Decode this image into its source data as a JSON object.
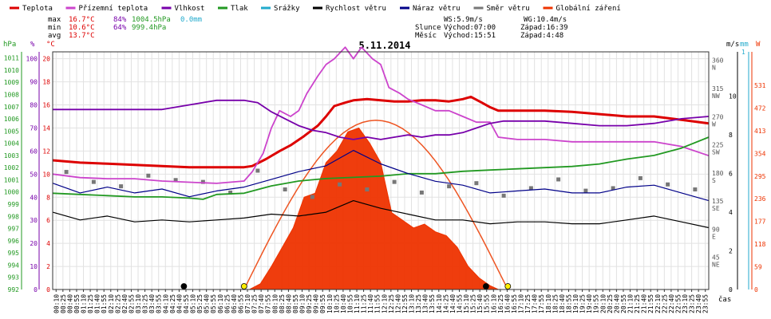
{
  "legend": [
    {
      "label": "Teplota",
      "color": "#dd0000"
    },
    {
      "label": "Přízemní teplota",
      "color": "#cc44cc"
    },
    {
      "label": "Vlhkost",
      "color": "#7700aa"
    },
    {
      "label": "Tlak",
      "color": "#229922"
    },
    {
      "label": "Srážky",
      "color": "#22aacc"
    },
    {
      "label": "Rychlost větru",
      "color": "#000000"
    },
    {
      "label": "Náraz větru",
      "color": "#000088"
    },
    {
      "label": "Směr větru",
      "color": "#777777"
    },
    {
      "label": "Globální záření",
      "color": "#ee3300"
    }
  ],
  "stats": {
    "max": {
      "label": "max",
      "temp": "16.7°C",
      "hum": "84%",
      "press": "1004.5hPa",
      "rain": "0.0mm"
    },
    "min": {
      "label": "min",
      "temp": "10.6°C",
      "hum": "64%",
      "press": "999.4hPa"
    },
    "avg": {
      "label": "avg",
      "temp": "13.7°C"
    }
  },
  "wind_info": {
    "ws": "WS:5.9m/s",
    "wg": "WG:10.4m/s"
  },
  "sun_info": {
    "label": "Slunce",
    "rise": "Východ:07:00",
    "set": "Západ:16:39"
  },
  "moon_info": {
    "label": "Měsíc",
    "rise": "Východ:15:51",
    "set": "Západ:4:48"
  },
  "axis_units": {
    "hpa": "hPa",
    "pct": "%",
    "degc": "°C",
    "ms": "m/s",
    "mm": "mm",
    "w": "W",
    "time": "čas"
  },
  "chart_data": {
    "type": "line",
    "title": "5.11.2014",
    "x_ticks": [
      "00:10",
      "00:25",
      "00:40",
      "00:55",
      "01:10",
      "01:25",
      "01:40",
      "01:55",
      "02:10",
      "02:25",
      "02:40",
      "02:55",
      "03:10",
      "03:25",
      "03:40",
      "03:55",
      "04:10",
      "04:25",
      "04:40",
      "04:55",
      "05:10",
      "05:25",
      "05:40",
      "05:55",
      "06:10",
      "06:25",
      "06:40",
      "06:55",
      "07:10",
      "07:25",
      "07:40",
      "07:55",
      "08:10",
      "08:25",
      "08:40",
      "08:55",
      "09:10",
      "09:25",
      "09:40",
      "09:55",
      "10:10",
      "10:25",
      "10:40",
      "10:55",
      "11:10",
      "11:25",
      "11:40",
      "11:55",
      "12:10",
      "12:25",
      "12:40",
      "12:55",
      "13:10",
      "13:25",
      "13:40",
      "13:55",
      "14:10",
      "14:25",
      "14:40",
      "14:55",
      "15:10",
      "15:25",
      "15:40",
      "15:55",
      "16:10",
      "16:25",
      "16:40",
      "16:55",
      "17:10",
      "17:25",
      "17:40",
      "17:55",
      "18:10",
      "18:25",
      "18:40",
      "18:55",
      "19:10",
      "19:25",
      "19:40",
      "19:55",
      "20:10",
      "20:25",
      "20:40",
      "20:55",
      "21:10",
      "21:25",
      "21:40",
      "21:55",
      "22:10",
      "22:25",
      "22:40",
      "22:55",
      "23:10",
      "23:25",
      "23:40",
      "23:55"
    ],
    "axes": {
      "pressure_hpa": {
        "ticks": [
          992,
          993,
          994,
          995,
          996,
          997,
          998,
          999,
          1000,
          1001,
          1002,
          1003,
          1004,
          1005,
          1006,
          1007,
          1008,
          1009,
          1010,
          1011
        ],
        "color": "#229922"
      },
      "humidity_pct": {
        "ticks": [
          0,
          10,
          20,
          30,
          40,
          50,
          60,
          70,
          80,
          90,
          100
        ],
        "color": "#7700aa"
      },
      "temp_c": {
        "ticks": [
          0,
          2,
          4,
          6,
          8,
          10,
          12,
          14,
          16,
          18,
          20
        ],
        "color": "#dd0000"
      },
      "wind_dir": {
        "ticks": [
          {
            "deg": 45,
            "label": "NE"
          },
          {
            "deg": 90,
            "label": "E"
          },
          {
            "deg": 135,
            "label": "SE"
          },
          {
            "deg": 180,
            "label": "S"
          },
          {
            "deg": 225,
            "label": "SW"
          },
          {
            "deg": 270,
            "label": "W"
          },
          {
            "deg": 315,
            "label": "NW"
          },
          {
            "deg": 360,
            "label": "N"
          }
        ],
        "color": "#555555"
      },
      "wind_ms": {
        "ticks": [
          0,
          2,
          4,
          6,
          8,
          10
        ],
        "color": "#000000"
      },
      "rain_mm": {
        "ticks": [
          1
        ],
        "color": "#22aacc"
      },
      "radiation_w": {
        "ticks": [
          0,
          59,
          118,
          177,
          236,
          295,
          354,
          413,
          472,
          531
        ],
        "color": "#ee3300"
      }
    },
    "series": [
      {
        "name": "Teplota",
        "axis": "temp_c",
        "color": "#dd0000",
        "points": [
          [
            0,
            11.2
          ],
          [
            1,
            11.0
          ],
          [
            2,
            10.9
          ],
          [
            3,
            10.8
          ],
          [
            4,
            10.7
          ],
          [
            5,
            10.6
          ],
          [
            6,
            10.6
          ],
          [
            7,
            10.6
          ],
          [
            7.3,
            10.7
          ],
          [
            7.8,
            11.3
          ],
          [
            8.3,
            12.0
          ],
          [
            8.7,
            12.5
          ],
          [
            9.2,
            13.3
          ],
          [
            9.7,
            14.2
          ],
          [
            10.0,
            15.0
          ],
          [
            10.3,
            15.9
          ],
          [
            10.7,
            16.2
          ],
          [
            11.0,
            16.4
          ],
          [
            11.5,
            16.5
          ],
          [
            12.0,
            16.4
          ],
          [
            12.5,
            16.3
          ],
          [
            13.0,
            16.3
          ],
          [
            13.5,
            16.4
          ],
          [
            14.0,
            16.4
          ],
          [
            14.5,
            16.3
          ],
          [
            15.0,
            16.5
          ],
          [
            15.3,
            16.7
          ],
          [
            15.7,
            16.2
          ],
          [
            16.0,
            15.8
          ],
          [
            16.3,
            15.5
          ],
          [
            17,
            15.5
          ],
          [
            18,
            15.5
          ],
          [
            19,
            15.4
          ],
          [
            20,
            15.2
          ],
          [
            21,
            15.0
          ],
          [
            22,
            15.0
          ],
          [
            23,
            14.7
          ],
          [
            24,
            14.4
          ]
        ]
      },
      {
        "name": "Přízemní teplota",
        "axis": "temp_c",
        "color": "#cc44cc",
        "points": [
          [
            0,
            10.0
          ],
          [
            1,
            9.7
          ],
          [
            2,
            9.6
          ],
          [
            3,
            9.6
          ],
          [
            4,
            9.4
          ],
          [
            5,
            9.3
          ],
          [
            6,
            9.2
          ],
          [
            7,
            9.4
          ],
          [
            7.3,
            10.2
          ],
          [
            7.7,
            11.8
          ],
          [
            8.0,
            14.0
          ],
          [
            8.3,
            15.5
          ],
          [
            8.7,
            15.0
          ],
          [
            9.0,
            15.5
          ],
          [
            9.3,
            17.0
          ],
          [
            9.7,
            18.5
          ],
          [
            10.0,
            19.5
          ],
          [
            10.3,
            20.0
          ],
          [
            10.7,
            21.0
          ],
          [
            11.0,
            20.0
          ],
          [
            11.3,
            21.0
          ],
          [
            11.7,
            20.0
          ],
          [
            12.0,
            19.5
          ],
          [
            12.3,
            17.5
          ],
          [
            12.7,
            17.0
          ],
          [
            13.0,
            16.5
          ],
          [
            13.5,
            16.0
          ],
          [
            14.0,
            15.5
          ],
          [
            14.5,
            15.5
          ],
          [
            15.0,
            15.0
          ],
          [
            15.5,
            14.5
          ],
          [
            16.0,
            14.5
          ],
          [
            16.3,
            13.2
          ],
          [
            17,
            13.0
          ],
          [
            18,
            13.0
          ],
          [
            19,
            12.8
          ],
          [
            20,
            12.8
          ],
          [
            21,
            12.8
          ],
          [
            22,
            12.8
          ],
          [
            23,
            12.4
          ],
          [
            24,
            11.6
          ]
        ]
      },
      {
        "name": "Vlhkost",
        "axis": "humidity_pct",
        "color": "#7700aa",
        "points": [
          [
            0,
            78
          ],
          [
            1,
            78
          ],
          [
            2,
            78
          ],
          [
            3,
            78
          ],
          [
            4,
            78
          ],
          [
            5,
            80
          ],
          [
            6,
            82
          ],
          [
            7,
            82
          ],
          [
            7.5,
            81
          ],
          [
            8,
            77
          ],
          [
            8.5,
            74
          ],
          [
            9,
            71
          ],
          [
            9.5,
            69
          ],
          [
            10,
            68
          ],
          [
            10.5,
            66
          ],
          [
            11,
            65
          ],
          [
            11.5,
            66
          ],
          [
            12,
            65
          ],
          [
            12.5,
            66
          ],
          [
            13,
            67
          ],
          [
            13.5,
            66
          ],
          [
            14,
            67
          ],
          [
            14.5,
            67
          ],
          [
            15,
            68
          ],
          [
            15.5,
            70
          ],
          [
            16,
            72
          ],
          [
            16.5,
            73
          ],
          [
            17,
            73
          ],
          [
            18,
            73
          ],
          [
            19,
            72
          ],
          [
            20,
            71
          ],
          [
            21,
            71
          ],
          [
            22,
            72
          ],
          [
            23,
            74
          ],
          [
            24,
            75
          ]
        ]
      },
      {
        "name": "Tlak",
        "axis": "pressure_hpa",
        "color": "#229922",
        "points": [
          [
            0,
            999.9
          ],
          [
            1,
            999.8
          ],
          [
            2,
            999.7
          ],
          [
            3,
            999.6
          ],
          [
            4,
            999.6
          ],
          [
            5,
            999.5
          ],
          [
            5.5,
            999.4
          ],
          [
            6,
            999.8
          ],
          [
            7,
            999.9
          ],
          [
            8,
            1000.5
          ],
          [
            9,
            1000.9
          ],
          [
            10,
            1001.1
          ],
          [
            11,
            1001.2
          ],
          [
            12,
            1001.3
          ],
          [
            13,
            1001.5
          ],
          [
            14,
            1001.5
          ],
          [
            15,
            1001.7
          ],
          [
            16,
            1001.8
          ],
          [
            17,
            1001.9
          ],
          [
            18,
            1002.0
          ],
          [
            19,
            1002.1
          ],
          [
            20,
            1002.3
          ],
          [
            21,
            1002.7
          ],
          [
            22,
            1003.0
          ],
          [
            23,
            1003.6
          ],
          [
            24,
            1004.5
          ]
        ]
      },
      {
        "name": "Globální záření",
        "axis": "radiation_w",
        "color": "#ee3300",
        "points": [
          [
            7.2,
            0
          ],
          [
            7.6,
            15
          ],
          [
            8.0,
            60
          ],
          [
            8.4,
            110
          ],
          [
            8.8,
            160
          ],
          [
            9.2,
            240
          ],
          [
            9.6,
            250
          ],
          [
            10.0,
            330
          ],
          [
            10.4,
            360
          ],
          [
            10.8,
            410
          ],
          [
            11.2,
            420
          ],
          [
            11.6,
            380
          ],
          [
            12.0,
            330
          ],
          [
            12.4,
            200
          ],
          [
            12.8,
            180
          ],
          [
            13.2,
            160
          ],
          [
            13.6,
            170
          ],
          [
            14.0,
            150
          ],
          [
            14.4,
            140
          ],
          [
            14.8,
            110
          ],
          [
            15.2,
            60
          ],
          [
            15.6,
            30
          ],
          [
            16.0,
            10
          ],
          [
            16.3,
            0
          ]
        ]
      },
      {
        "name": "Rychlost větru",
        "axis": "wind_ms",
        "color": "#000000",
        "points": [
          [
            0,
            4.0
          ],
          [
            1,
            3.6
          ],
          [
            2,
            3.8
          ],
          [
            3,
            3.5
          ],
          [
            4,
            3.6
          ],
          [
            5,
            3.5
          ],
          [
            6,
            3.6
          ],
          [
            7,
            3.7
          ],
          [
            8,
            3.9
          ],
          [
            9,
            3.8
          ],
          [
            10,
            4.0
          ],
          [
            11,
            4.6
          ],
          [
            12,
            4.2
          ],
          [
            13,
            3.9
          ],
          [
            14,
            3.6
          ],
          [
            15,
            3.6
          ],
          [
            16,
            3.4
          ],
          [
            17,
            3.5
          ],
          [
            18,
            3.5
          ],
          [
            19,
            3.4
          ],
          [
            20,
            3.4
          ],
          [
            21,
            3.6
          ],
          [
            22,
            3.8
          ],
          [
            23,
            3.5
          ],
          [
            24,
            3.2
          ]
        ]
      },
      {
        "name": "Náraz větru",
        "axis": "wind_ms",
        "color": "#000088",
        "points": [
          [
            0,
            5.5
          ],
          [
            1,
            5.0
          ],
          [
            2,
            5.3
          ],
          [
            3,
            5.0
          ],
          [
            4,
            5.2
          ],
          [
            5,
            4.8
          ],
          [
            6,
            5.1
          ],
          [
            7,
            5.3
          ],
          [
            8,
            5.7
          ],
          [
            9,
            6.1
          ],
          [
            10,
            6.4
          ],
          [
            11,
            7.2
          ],
          [
            12,
            6.5
          ],
          [
            13,
            6.0
          ],
          [
            14,
            5.6
          ],
          [
            15,
            5.4
          ],
          [
            16,
            5.0
          ],
          [
            17,
            5.1
          ],
          [
            18,
            5.2
          ],
          [
            19,
            5.0
          ],
          [
            20,
            5.0
          ],
          [
            21,
            5.3
          ],
          [
            22,
            5.4
          ],
          [
            23,
            5.0
          ],
          [
            24,
            4.6
          ]
        ]
      }
    ],
    "wind_direction_points": [
      [
        0.5,
        188
      ],
      [
        1.5,
        172
      ],
      [
        2.5,
        165
      ],
      [
        3.5,
        182
      ],
      [
        4.5,
        175
      ],
      [
        5.5,
        172
      ],
      [
        6.5,
        155
      ],
      [
        7.5,
        190
      ],
      [
        8.5,
        160
      ],
      [
        9.5,
        148
      ],
      [
        10.5,
        168
      ],
      [
        11.5,
        160
      ],
      [
        12.5,
        172
      ],
      [
        13.5,
        155
      ],
      [
        14.5,
        165
      ],
      [
        15.5,
        170
      ],
      [
        16.5,
        150
      ],
      [
        17.5,
        162
      ],
      [
        18.5,
        176
      ],
      [
        19.5,
        158
      ],
      [
        20.5,
        162
      ],
      [
        21.5,
        178
      ],
      [
        22.5,
        168
      ],
      [
        23.5,
        160
      ]
    ],
    "rain_mm": 0.0,
    "sun_events": {
      "sunrise": "07:00",
      "sunset": "16:39",
      "moonrise": "15:51",
      "moonset": "4:48"
    }
  }
}
